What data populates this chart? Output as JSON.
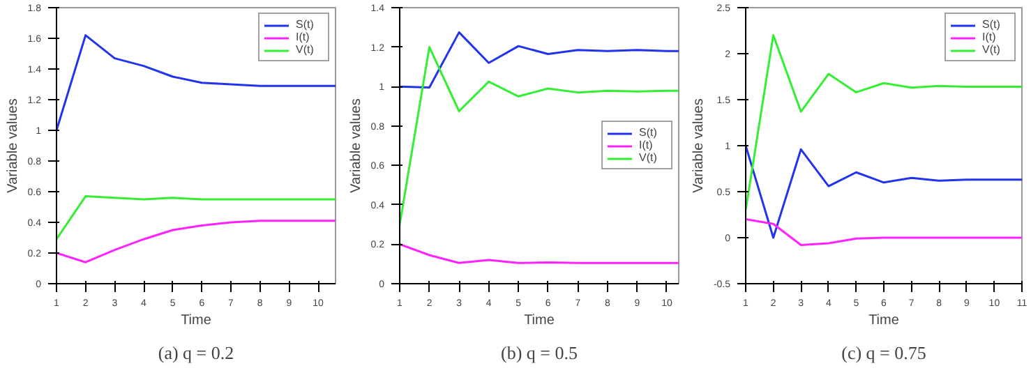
{
  "chart_data": [
    {
      "type": "line",
      "title": "(a) q = 0.2",
      "xlabel": "Time",
      "ylabel": "Variable values",
      "xlim": [
        1,
        10.6
      ],
      "xticks": [
        1,
        2,
        3,
        4,
        5,
        6,
        7,
        8,
        9,
        10
      ],
      "ylim": [
        0,
        1.8
      ],
      "yticks": [
        0,
        0.2,
        0.4,
        0.6,
        0.8,
        1,
        1.2,
        1.4,
        1.6,
        1.8
      ],
      "x": [
        1,
        2,
        3,
        4,
        5,
        6,
        7,
        8,
        9,
        10,
        10.6
      ],
      "legend": "top right",
      "grid": false,
      "series": [
        {
          "name": "S(t)",
          "color": "#2233ee",
          "values": [
            1,
            1.62,
            1.47,
            1.42,
            1.35,
            1.31,
            1.3,
            1.29,
            1.29,
            1.29,
            1.29
          ]
        },
        {
          "name": "I(t)",
          "color": "#ff22ff",
          "values": [
            0.2,
            0.14,
            0.22,
            0.29,
            0.35,
            0.38,
            0.4,
            0.41,
            0.41,
            0.41,
            0.41
          ]
        },
        {
          "name": "V(t)",
          "color": "#33ee33",
          "values": [
            0.29,
            0.57,
            0.56,
            0.55,
            0.56,
            0.55,
            0.55,
            0.55,
            0.55,
            0.55,
            0.55
          ]
        }
      ]
    },
    {
      "type": "line",
      "title": "(b) q = 0.5",
      "xlabel": "Time",
      "ylabel": "Variable values",
      "xlim": [
        1,
        10.4
      ],
      "xticks": [
        1,
        2,
        3,
        4,
        5,
        6,
        7,
        8,
        9,
        10
      ],
      "ylim": [
        0,
        1.4
      ],
      "yticks": [
        0,
        0.2,
        0.4,
        0.6,
        0.8,
        1,
        1.2,
        1.4
      ],
      "x": [
        1,
        2,
        3,
        4,
        5,
        6,
        7,
        8,
        9,
        10,
        10.4
      ],
      "legend": "right",
      "grid": false,
      "series": [
        {
          "name": "S(t)",
          "color": "#2233ee",
          "values": [
            1.0,
            0.995,
            1.275,
            1.12,
            1.205,
            1.165,
            1.185,
            1.18,
            1.185,
            1.18,
            1.18
          ]
        },
        {
          "name": "I(t)",
          "color": "#ff22ff",
          "values": [
            0.2,
            0.145,
            0.105,
            0.12,
            0.105,
            0.108,
            0.105,
            0.105,
            0.105,
            0.105,
            0.105
          ]
        },
        {
          "name": "V(t)",
          "color": "#33ee33",
          "values": [
            0.3,
            1.2,
            0.875,
            1.025,
            0.95,
            0.99,
            0.97,
            0.978,
            0.975,
            0.978,
            0.978
          ]
        }
      ]
    },
    {
      "type": "line",
      "title": "(c) q = 0.75",
      "xlabel": "Time",
      "ylabel": "Variable values",
      "xlim": [
        1,
        11
      ],
      "xticks": [
        1,
        2,
        3,
        4,
        5,
        6,
        7,
        8,
        9,
        10,
        11
      ],
      "ylim": [
        -0.5,
        2.5
      ],
      "yticks": [
        -0.5,
        0,
        0.5,
        1,
        1.5,
        2,
        2.5
      ],
      "x": [
        1,
        2,
        3,
        4,
        5,
        6,
        7,
        8,
        9,
        10,
        11
      ],
      "legend": "top right",
      "grid": false,
      "series": [
        {
          "name": "S(t)",
          "color": "#2233ee",
          "values": [
            1.0,
            0.0,
            0.96,
            0.56,
            0.71,
            0.6,
            0.65,
            0.62,
            0.63,
            0.63,
            0.63
          ]
        },
        {
          "name": "I(t)",
          "color": "#ff22ff",
          "values": [
            0.2,
            0.15,
            -0.08,
            -0.06,
            -0.01,
            0.0,
            0.0,
            0.0,
            0.0,
            0.0,
            0.0
          ]
        },
        {
          "name": "V(t)",
          "color": "#33ee33",
          "values": [
            0.3,
            2.2,
            1.37,
            1.78,
            1.58,
            1.68,
            1.63,
            1.65,
            1.64,
            1.64,
            1.64
          ]
        }
      ]
    }
  ]
}
